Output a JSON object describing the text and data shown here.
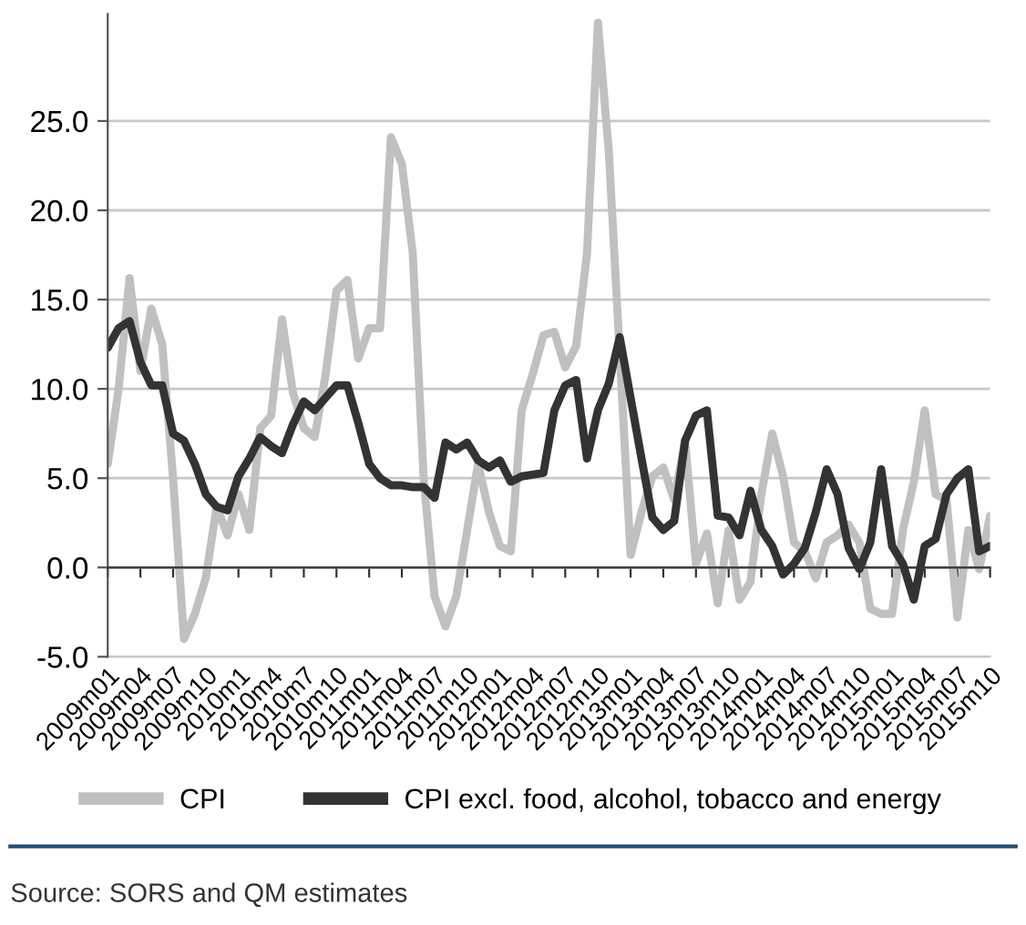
{
  "chart_data": {
    "type": "line",
    "categories": [
      "2009m01",
      null,
      null,
      "2009m04",
      null,
      null,
      "2009m07",
      null,
      null,
      "2009m10",
      null,
      null,
      "2010m1",
      null,
      null,
      "2010m4",
      null,
      null,
      "2010m7",
      null,
      null,
      "2010m10",
      null,
      null,
      "2011m01",
      null,
      null,
      "2011m04",
      null,
      null,
      "2011m07",
      null,
      null,
      "2011m10",
      null,
      null,
      "2012m01",
      null,
      null,
      "2012m04",
      null,
      null,
      "2012m07",
      null,
      null,
      "2012m10",
      null,
      null,
      "2013m01",
      null,
      null,
      "2013m04",
      null,
      null,
      "2013m07",
      null,
      null,
      "2013m10",
      null,
      null,
      "2014m01",
      null,
      null,
      "2014m04",
      null,
      null,
      "2014m07",
      null,
      null,
      "2014m10",
      null,
      null,
      "2015m01",
      null,
      null,
      "2015m04",
      null,
      null,
      "2015m07",
      null,
      null,
      "2015m10"
    ],
    "series": [
      {
        "name": "CPI",
        "color": "#c0c0c0",
        "values": [
          5.8,
          10,
          16.2,
          11,
          14.5,
          12.5,
          5,
          -4.0,
          -2.6,
          -0.6,
          3.4,
          1.8,
          4.1,
          2.1,
          7.8,
          8.5,
          13.9,
          9.8,
          7.8,
          7.3,
          10.8,
          15.5,
          16.1,
          11.7,
          13.4,
          13.4,
          24.1,
          22.6,
          17.6,
          5,
          -1.6,
          -3.3,
          -1.6,
          2.1,
          5.8,
          3.1,
          1.2,
          0.9,
          8.8,
          10.8,
          13.0,
          13.2,
          11.2,
          12.4,
          17.6,
          30.5,
          23.3,
          12,
          0.7,
          3.1,
          5.1,
          5.6,
          3.8,
          7.1,
          0.2,
          1.9,
          -2.0,
          2.1,
          -1.8,
          -0.8,
          4.1,
          7.5,
          5.1,
          1.4,
          0.9,
          -0.6,
          1.4,
          1.8,
          2.4,
          1.4,
          -2.3,
          -2.6,
          -2.6,
          2.1,
          4.8,
          8.8,
          4.1,
          3.8,
          -2.8,
          2.1,
          -0.1,
          2.9
        ]
      },
      {
        "name": "CPI excl. food, alcohol, tobacco and energy",
        "color": "#333333",
        "values": [
          12.3,
          13.4,
          13.8,
          11.5,
          10.2,
          10.2,
          7.5,
          7.1,
          5.8,
          4.1,
          3.4,
          3.2,
          5.1,
          6.1,
          7.3,
          6.8,
          6.4,
          8.0,
          9.3,
          8.8,
          9.5,
          10.2,
          10.2,
          8.1,
          5.8,
          5.0,
          4.6,
          4.6,
          4.5,
          4.5,
          3.9,
          7.0,
          6.6,
          7.0,
          6.0,
          5.6,
          6.0,
          4.8,
          5.1,
          5.2,
          5.3,
          8.8,
          10.2,
          10.5,
          6.1,
          8.8,
          10.3,
          12.9,
          9.5,
          6.1,
          2.8,
          2.1,
          2.6,
          7.1,
          8.5,
          8.8,
          2.9,
          2.8,
          1.8,
          4.3,
          2.1,
          1.2,
          -0.4,
          0.2,
          1.1,
          3.1,
          5.5,
          4.1,
          1.1,
          -0.1,
          1.4,
          5.5,
          1.2,
          0.2,
          -1.8,
          1.2,
          1.6,
          4.1,
          5.0,
          5.5,
          0.9,
          1.2
        ]
      }
    ],
    "ylim": [
      -5,
      31
    ],
    "yticks": [
      {
        "value": -5,
        "label": "-5.0"
      },
      {
        "value": 0,
        "label": "0.0"
      },
      {
        "value": 5,
        "label": "5.0"
      },
      {
        "value": 10,
        "label": "10.0"
      },
      {
        "value": 15,
        "label": "15.0"
      },
      {
        "value": 20,
        "label": "20.0"
      },
      {
        "value": 25,
        "label": "25.0"
      }
    ],
    "grid": "y",
    "legend": "bottom",
    "marker": "none",
    "line_style": "solid",
    "annotations": [
      "Source: SORS and QM estimates"
    ]
  }
}
